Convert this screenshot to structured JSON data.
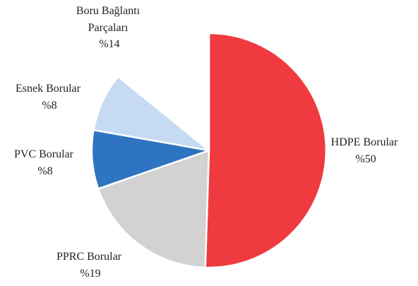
{
  "chart_data": {
    "type": "pie",
    "title": "",
    "slices": [
      {
        "name": "HDPE Borular",
        "value": 50,
        "label": "%50",
        "color": "#ef3b3f"
      },
      {
        "name": "PPRC Borular",
        "value": 19,
        "label": "%19",
        "color": "#d2d2d2"
      },
      {
        "name": "PVC Borular",
        "value": 8,
        "label": "%8",
        "color": "#2e74c0"
      },
      {
        "name": "Esnek Borular",
        "value": 8,
        "label": "%8",
        "color": "#c6dbf3"
      },
      {
        "name": "Boru Bağlantı Parçaları",
        "value": 14,
        "label": "%14",
        "color": "#ffffff"
      }
    ],
    "name_lines": [
      [
        "HDPE Borular"
      ],
      [
        "PPRC Borular"
      ],
      [
        "PVC Borular"
      ],
      [
        "Esnek Borular"
      ],
      [
        "Boru Bağlantı",
        "Parçaları"
      ]
    ],
    "start_angle": "top",
    "direction": "clockwise",
    "grid": false,
    "legend": "none"
  }
}
